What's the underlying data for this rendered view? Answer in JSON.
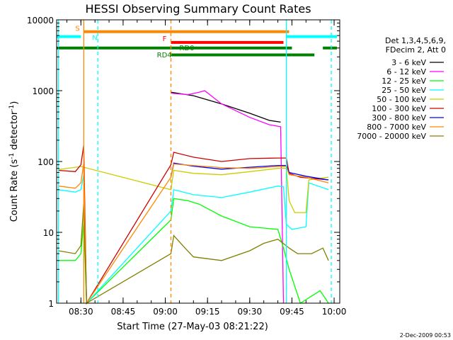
{
  "colors": {
    "background": "#ffffff",
    "axis": "#000000",
    "attenuator": "#ff8800",
    "night": "#00ffff",
    "flare": "#ff0000",
    "decimation": "#008000"
  },
  "chart_data": {
    "type": "line",
    "title": "HESSI Observing Summary Count Rates",
    "xlabel": "Start Time (27-May-03 08:21:22)",
    "ylabel_main": "Count Rate (s",
    "ylabel_sup": "-1",
    "ylabel_mid": " detector",
    "ylabel_sup2": "-1",
    "ylabel_end": ")",
    "y_scale": "log",
    "ylim": [
      1,
      10000
    ],
    "xlim": [
      "08:21:22",
      "10:02:00"
    ],
    "x_ticks": [
      "08:30",
      "08:45",
      "09:00",
      "09:15",
      "09:30",
      "09:45",
      "10:00"
    ],
    "y_ticks": [
      "1",
      "10",
      "100",
      "1000",
      "10000"
    ],
    "legend_header": [
      "Det 1,3,4,5,6,9,",
      "FDecim 2, Att 0"
    ],
    "footer_date": "2-Dec-2009 00:53",
    "flag_labels": {
      "attenuator": "S",
      "night": "N",
      "flare": "F",
      "decimation_a": "RD0",
      "decimation_b": "RD4"
    },
    "series": [
      {
        "name": "3 - 6 keV",
        "color": "#000000",
        "points": [
          [
            "09:02",
            950
          ],
          [
            "09:10",
            850
          ],
          [
            "09:20",
            650
          ],
          [
            "09:30",
            480
          ],
          [
            "09:37",
            380
          ],
          [
            "09:41",
            360
          ]
        ]
      },
      {
        "name": "6 - 12 keV",
        "color": "#ff00ff",
        "points": [
          [
            "09:02",
            920
          ],
          [
            "09:08",
            880
          ],
          [
            "09:12",
            950
          ],
          [
            "09:14",
            1000
          ],
          [
            "09:20",
            650
          ],
          [
            "09:30",
            420
          ],
          [
            "09:37",
            330
          ],
          [
            "09:41",
            310
          ],
          [
            "09:42",
            1
          ]
        ]
      },
      {
        "name": "12 - 25 keV",
        "color": "#00ff00",
        "points": [
          [
            "08:22",
            4
          ],
          [
            "08:28",
            4
          ],
          [
            "08:30",
            5
          ],
          [
            "08:31",
            14
          ],
          [
            "08:32",
            1
          ],
          [
            "09:02",
            15
          ],
          [
            "09:03",
            30
          ],
          [
            "09:08",
            28
          ],
          [
            "09:12",
            25
          ],
          [
            "09:20",
            17
          ],
          [
            "09:30",
            12
          ],
          [
            "09:40",
            11
          ],
          [
            "09:42",
            6
          ],
          [
            "09:44",
            3
          ],
          [
            "09:48",
            1
          ],
          [
            "09:55",
            1.5
          ],
          [
            "09:58",
            1
          ]
        ]
      },
      {
        "name": "25 - 50 keV",
        "color": "#00ffff",
        "points": [
          [
            "08:22",
            40
          ],
          [
            "08:28",
            37
          ],
          [
            "08:30",
            40
          ],
          [
            "08:31",
            65
          ],
          [
            "08:32",
            1
          ],
          [
            "09:02",
            20
          ],
          [
            "09:03",
            40
          ],
          [
            "09:10",
            34
          ],
          [
            "09:20",
            31
          ],
          [
            "09:30",
            37
          ],
          [
            "09:40",
            45
          ],
          [
            "09:42",
            44
          ],
          [
            "09:43",
            13
          ],
          [
            "09:45",
            11
          ],
          [
            "09:50",
            12
          ],
          [
            "09:51",
            50
          ],
          [
            "09:58",
            40
          ]
        ]
      },
      {
        "name": "50 - 100 keV",
        "color": "#cccc00",
        "points": [
          [
            "08:22",
            77
          ],
          [
            "08:30",
            85
          ],
          [
            "09:02",
            40
          ],
          [
            "09:03",
            75
          ],
          [
            "09:10",
            68
          ],
          [
            "09:20",
            65
          ],
          [
            "09:30",
            72
          ],
          [
            "09:40",
            80
          ],
          [
            "09:43",
            80
          ],
          [
            "09:44",
            28
          ],
          [
            "09:46",
            19
          ],
          [
            "09:50",
            19
          ],
          [
            "09:51",
            55
          ],
          [
            "09:58",
            60
          ]
        ]
      },
      {
        "name": "100 - 300 keV",
        "color": "#cc0000",
        "points": [
          [
            "08:22",
            75
          ],
          [
            "08:28",
            72
          ],
          [
            "08:30",
            90
          ],
          [
            "08:31",
            170
          ],
          [
            "08:32",
            1
          ],
          [
            "09:02",
            90
          ],
          [
            "09:03",
            135
          ],
          [
            "09:10",
            115
          ],
          [
            "09:20",
            100
          ],
          [
            "09:30",
            110
          ],
          [
            "09:40",
            112
          ],
          [
            "09:43",
            112
          ],
          [
            "09:44",
            68
          ],
          [
            "09:48",
            60
          ],
          [
            "09:58",
            55
          ]
        ]
      },
      {
        "name": "300 - 800 keV",
        "color": "#0000ff",
        "points": [
          [
            "09:02",
            60
          ],
          [
            "09:03",
            95
          ],
          [
            "09:10",
            86
          ],
          [
            "09:20",
            78
          ],
          [
            "09:30",
            83
          ],
          [
            "09:40",
            88
          ],
          [
            "09:43",
            88
          ],
          [
            "09:44",
            70
          ],
          [
            "09:50",
            62
          ],
          [
            "09:58",
            55
          ]
        ]
      },
      {
        "name": "800 - 7000 keV",
        "color": "#ff8800",
        "points": [
          [
            "08:22",
            45
          ],
          [
            "08:28",
            42
          ],
          [
            "08:30",
            50
          ],
          [
            "08:31",
            95
          ],
          [
            "08:32",
            1
          ],
          [
            "09:02",
            60
          ],
          [
            "09:03",
            92
          ],
          [
            "09:10",
            88
          ],
          [
            "09:20",
            82
          ],
          [
            "09:30",
            80
          ],
          [
            "09:40",
            85
          ],
          [
            "09:43",
            85
          ],
          [
            "09:44",
            65
          ],
          [
            "09:50",
            60
          ],
          [
            "09:58",
            50
          ]
        ]
      },
      {
        "name": "7000 - 20000 keV",
        "color": "#808000",
        "points": [
          [
            "08:22",
            5.5
          ],
          [
            "08:28",
            5
          ],
          [
            "08:30",
            6.5
          ],
          [
            "08:31",
            25
          ],
          [
            "08:32",
            1
          ],
          [
            "09:02",
            5
          ],
          [
            "09:03",
            9
          ],
          [
            "09:07",
            6
          ],
          [
            "09:10",
            4.5
          ],
          [
            "09:20",
            4
          ],
          [
            "09:30",
            5.5
          ],
          [
            "09:35",
            7
          ],
          [
            "09:40",
            8
          ],
          [
            "09:44",
            6
          ],
          [
            "09:47",
            5
          ],
          [
            "09:52",
            5
          ],
          [
            "09:56",
            6
          ],
          [
            "09:58",
            4
          ]
        ]
      }
    ],
    "bars": [
      {
        "kind": "attenuator",
        "start": "08:31",
        "end": "09:44",
        "value": 6800
      },
      {
        "kind": "night",
        "start": "08:21:22",
        "end": "08:30",
        "value": 5800
      },
      {
        "kind": "night",
        "start": "09:43",
        "end": "10:01",
        "value": 5800
      },
      {
        "kind": "flare",
        "start": "09:02",
        "end": "09:42",
        "value": 4800
      },
      {
        "kind": "decimation",
        "start": "08:21:22",
        "end": "09:45",
        "value": 4000
      },
      {
        "kind": "decimation",
        "start": "09:02",
        "end": "09:45",
        "value": 3200
      },
      {
        "kind": "decimation",
        "start": "09:45",
        "end": "09:53",
        "value": 3200
      },
      {
        "kind": "decimation",
        "start": "09:56",
        "end": "10:01",
        "value": 4000
      }
    ],
    "vlines": [
      {
        "kind": "night",
        "time": "08:22",
        "style": "solid"
      },
      {
        "kind": "attenuator",
        "time": "08:31",
        "style": "solid"
      },
      {
        "kind": "night",
        "time": "08:36",
        "style": "dash"
      },
      {
        "kind": "attenuator",
        "time": "09:02",
        "style": "dash"
      },
      {
        "kind": "night",
        "time": "09:43",
        "style": "solid"
      },
      {
        "kind": "night",
        "time": "09:59",
        "style": "dash"
      }
    ]
  }
}
